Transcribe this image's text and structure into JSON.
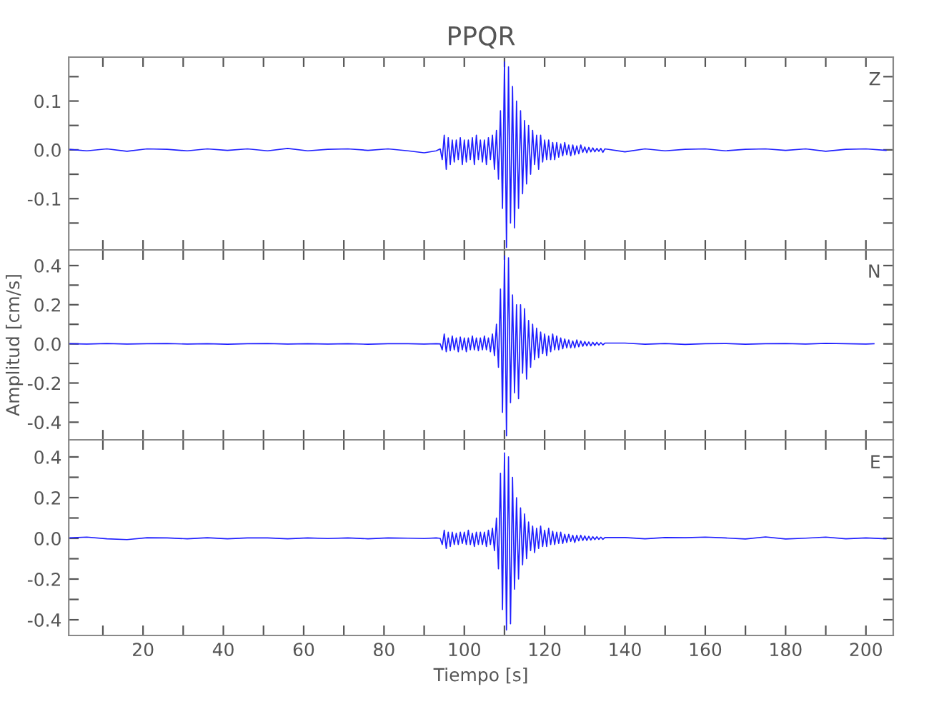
{
  "chart_data": [
    {
      "type": "line",
      "title": "PPQR",
      "annotations": [
        "Z"
      ],
      "tick_labels": "y",
      "grid": false,
      "x": [
        1.5,
        6,
        11,
        16,
        21,
        26,
        31,
        36,
        41,
        46,
        51,
        56,
        61,
        66,
        71,
        76,
        81,
        86,
        90,
        93,
        94,
        94.5,
        95,
        95.5,
        96,
        96.5,
        97,
        97.5,
        98,
        98.5,
        99,
        99.5,
        100,
        100.5,
        101,
        101.5,
        102,
        102.5,
        103,
        103.5,
        104,
        104.5,
        105,
        105.5,
        106,
        106.5,
        107,
        107.5,
        108,
        108.5,
        109,
        109.5,
        110,
        110.5,
        111,
        111.5,
        112,
        112.5,
        113,
        113.5,
        114,
        114.5,
        115,
        115.5,
        116,
        116.5,
        117,
        117.5,
        118,
        118.5,
        119,
        119.5,
        120,
        120.5,
        121,
        121.5,
        122,
        122.5,
        123,
        123.5,
        124,
        124.5,
        125,
        125.5,
        126,
        126.5,
        127,
        127.5,
        128,
        128.5,
        129,
        129.5,
        130,
        130.5,
        131,
        131.5,
        132,
        132.5,
        133,
        133.5,
        134,
        134.5,
        135,
        140,
        145,
        150,
        155,
        160,
        165,
        170,
        175,
        180,
        185,
        190,
        195,
        200,
        205
      ],
      "xlim": [
        1.5,
        206.8
      ],
      "xticks": [
        {
          "value": 10,
          "label": null
        },
        20,
        {
          "value": 30,
          "label": null
        },
        40,
        {
          "value": 50,
          "label": null
        },
        60,
        {
          "value": 70,
          "label": null
        },
        80,
        {
          "value": 90,
          "label": null
        },
        100,
        {
          "value": 110,
          "label": null
        },
        120,
        {
          "value": 130,
          "label": null
        },
        140,
        {
          "value": 150,
          "label": null
        },
        160,
        {
          "value": 170,
          "label": null
        },
        180,
        {
          "value": 190,
          "label": null
        },
        200
      ],
      "ylim": [
        -0.205,
        0.19
      ],
      "yticks": [
        {
          "value": -0.15,
          "label": null
        },
        {
          "value": -0.1,
          "label": "-0.1"
        },
        {
          "value": -0.05,
          "label": null
        },
        {
          "value": 0,
          "label": "0.0"
        },
        {
          "value": 0.05,
          "label": null
        },
        {
          "value": 0.1,
          "label": "0.1"
        },
        {
          "value": 0.15,
          "label": null
        }
      ],
      "series": [
        {
          "color": "#1f1fff",
          "values": [
            0.001,
            -0.002,
            0.002,
            -0.003,
            0.002,
            0.001,
            -0.002,
            0.002,
            -0.001,
            0.002,
            -0.002,
            0.003,
            -0.002,
            0.001,
            0.002,
            -0.001,
            0.002,
            -0.002,
            -0.006,
            -0.002,
            0.002,
            -0.02,
            0.03,
            -0.04,
            0.025,
            -0.03,
            0.02,
            -0.025,
            0.02,
            -0.02,
            0.025,
            -0.03,
            0.02,
            -0.025,
            0.02,
            -0.02,
            0.025,
            -0.03,
            0.03,
            -0.02,
            0.02,
            -0.025,
            0.02,
            -0.03,
            0.025,
            -0.02,
            0.03,
            -0.04,
            0.04,
            -0.06,
            0.08,
            -0.12,
            0.18,
            -0.2,
            0.17,
            -0.15,
            0.13,
            -0.16,
            0.1,
            -0.12,
            0.08,
            -0.09,
            0.06,
            -0.07,
            0.05,
            -0.05,
            0.04,
            -0.03,
            0.03,
            -0.04,
            0.03,
            -0.025,
            0.02,
            -0.02,
            0.02,
            -0.02,
            0.015,
            -0.02,
            0.015,
            -0.015,
            0.012,
            -0.012,
            0.015,
            -0.01,
            0.01,
            -0.012,
            0.01,
            -0.01,
            0.008,
            -0.008,
            0.01,
            -0.005,
            0.006,
            -0.006,
            0.005,
            -0.004,
            0.004,
            -0.004,
            0.003,
            -0.003,
            0.003,
            -0.005,
            0.002,
            -0.004,
            0.002,
            -0.002,
            0.001,
            0.002,
            -0.002,
            0.001,
            0.002,
            -0.001,
            0.002,
            -0.003,
            0.001,
            0.002,
            -0.001
          ]
        }
      ]
    },
    {
      "type": "line",
      "ylabel": "Amplitud [cm/s]",
      "annotations": [
        "N"
      ],
      "tick_labels": "y",
      "grid": false,
      "x": [
        1.5,
        6,
        11,
        16,
        21,
        26,
        31,
        36,
        41,
        46,
        51,
        56,
        61,
        66,
        71,
        76,
        81,
        86,
        90,
        93,
        94,
        94.5,
        95,
        95.5,
        96,
        96.5,
        97,
        97.5,
        98,
        98.5,
        99,
        99.5,
        100,
        100.5,
        101,
        101.5,
        102,
        102.5,
        103,
        103.5,
        104,
        104.5,
        105,
        105.5,
        106,
        106.5,
        107,
        107.5,
        108,
        108.5,
        109,
        109.5,
        110,
        110.5,
        111,
        111.5,
        112,
        112.5,
        113,
        113.5,
        114,
        114.5,
        115,
        115.5,
        116,
        116.5,
        117,
        117.5,
        118,
        118.5,
        119,
        119.5,
        120,
        120.5,
        121,
        121.5,
        122,
        122.5,
        123,
        123.5,
        124,
        124.5,
        125,
        125.5,
        126,
        126.5,
        127,
        127.5,
        128,
        128.5,
        129,
        129.5,
        130,
        130.5,
        131,
        131.5,
        132,
        132.5,
        133,
        133.5,
        134,
        134.5,
        135,
        140,
        145,
        150,
        155,
        160,
        165,
        170,
        175,
        180,
        185,
        190,
        195,
        200,
        202
      ],
      "xlim": [
        1.5,
        206.8
      ],
      "xticks": [
        {
          "value": 10,
          "label": null
        },
        20,
        {
          "value": 30,
          "label": null
        },
        40,
        {
          "value": 50,
          "label": null
        },
        60,
        {
          "value": 70,
          "label": null
        },
        80,
        {
          "value": 90,
          "label": null
        },
        100,
        {
          "value": 110,
          "label": null
        },
        120,
        {
          "value": 130,
          "label": null
        },
        140,
        {
          "value": 150,
          "label": null
        },
        160,
        {
          "value": 170,
          "label": null
        },
        180,
        {
          "value": 190,
          "label": null
        },
        200
      ],
      "ylim": [
        -0.49,
        0.48
      ],
      "yticks": [
        {
          "value": -0.4,
          "label": "-0.4"
        },
        {
          "value": -0.3,
          "label": null
        },
        {
          "value": -0.2,
          "label": "-0.2"
        },
        {
          "value": -0.1,
          "label": null
        },
        {
          "value": 0,
          "label": "0.0"
        },
        {
          "value": 0.1,
          "label": null
        },
        {
          "value": 0.2,
          "label": "0.2"
        },
        {
          "value": 0.3,
          "label": null
        },
        {
          "value": 0.4,
          "label": "0.4"
        }
      ],
      "series": [
        {
          "color": "#1f1fff",
          "values": [
            0.001,
            -0.001,
            0.002,
            -0.001,
            0.001,
            0.002,
            -0.001,
            0.001,
            -0.002,
            0.001,
            0.002,
            -0.001,
            0.001,
            -0.001,
            0.001,
            -0.002,
            0.001,
            0.001,
            -0.001,
            0.001,
            0.0,
            -0.03,
            0.05,
            -0.04,
            0.03,
            -0.035,
            0.04,
            -0.03,
            0.03,
            -0.04,
            0.035,
            -0.03,
            0.03,
            -0.04,
            0.03,
            -0.03,
            0.04,
            -0.03,
            0.03,
            -0.035,
            0.03,
            -0.03,
            0.04,
            -0.03,
            0.03,
            -0.04,
            0.05,
            -0.06,
            0.1,
            -0.12,
            0.28,
            -0.35,
            0.45,
            -0.47,
            0.44,
            -0.3,
            0.25,
            -0.25,
            0.2,
            -0.28,
            0.2,
            -0.15,
            0.18,
            -0.18,
            0.12,
            -0.12,
            0.1,
            -0.08,
            0.08,
            -0.07,
            0.06,
            -0.05,
            0.05,
            -0.06,
            0.04,
            -0.04,
            0.05,
            -0.03,
            0.04,
            -0.03,
            0.03,
            -0.025,
            0.025,
            -0.02,
            0.02,
            -0.02,
            0.015,
            -0.02,
            0.02,
            -0.015,
            0.015,
            -0.012,
            0.012,
            -0.01,
            0.01,
            -0.01,
            0.008,
            -0.008,
            0.008,
            -0.006,
            0.006,
            -0.005,
            0.004,
            0.004,
            -0.002,
            0.002,
            -0.003,
            0.001,
            0.002,
            -0.002,
            0.001,
            0.002,
            -0.001,
            0.003,
            0.001,
            -0.001,
            0.001
          ]
        }
      ]
    },
    {
      "type": "line",
      "xlabel": "Tiempo [s]",
      "annotations": [
        "E"
      ],
      "grid": false,
      "x": [
        1.5,
        6,
        11,
        16,
        21,
        26,
        31,
        36,
        41,
        46,
        51,
        56,
        61,
        66,
        71,
        76,
        81,
        86,
        90,
        93,
        94,
        94.5,
        95,
        95.5,
        96,
        96.5,
        97,
        97.5,
        98,
        98.5,
        99,
        99.5,
        100,
        100.5,
        101,
        101.5,
        102,
        102.5,
        103,
        103.5,
        104,
        104.5,
        105,
        105.5,
        106,
        106.5,
        107,
        107.5,
        108,
        108.5,
        109,
        109.5,
        110,
        110.5,
        111,
        111.5,
        112,
        112.5,
        113,
        113.5,
        114,
        114.5,
        115,
        115.5,
        116,
        116.5,
        117,
        117.5,
        118,
        118.5,
        119,
        119.5,
        120,
        120.5,
        121,
        121.5,
        122,
        122.5,
        123,
        123.5,
        124,
        124.5,
        125,
        125.5,
        126,
        126.5,
        127,
        127.5,
        128,
        128.5,
        129,
        129.5,
        130,
        130.5,
        131,
        131.5,
        132,
        132.5,
        133,
        133.5,
        134,
        134.5,
        135,
        140,
        145,
        150,
        155,
        160,
        165,
        170,
        175,
        180,
        185,
        190,
        195,
        200,
        205
      ],
      "xlim": [
        1.5,
        206.8
      ],
      "xticks": [
        {
          "value": 10,
          "label": null
        },
        20,
        {
          "value": 30,
          "label": null
        },
        40,
        {
          "value": 50,
          "label": null
        },
        60,
        {
          "value": 70,
          "label": null
        },
        80,
        {
          "value": 90,
          "label": null
        },
        100,
        {
          "value": 110,
          "label": null
        },
        120,
        {
          "value": 130,
          "label": null
        },
        140,
        {
          "value": 150,
          "label": null
        },
        160,
        {
          "value": 170,
          "label": null
        },
        180,
        {
          "value": 190,
          "label": null
        },
        200
      ],
      "ylim": [
        -0.477,
        0.484
      ],
      "yticks": [
        {
          "value": -0.4,
          "label": "-0.4"
        },
        {
          "value": -0.3,
          "label": null
        },
        {
          "value": -0.2,
          "label": "-0.2"
        },
        {
          "value": -0.1,
          "label": null
        },
        {
          "value": 0,
          "label": "0.0"
        },
        {
          "value": 0.1,
          "label": null
        },
        {
          "value": 0.2,
          "label": "0.2"
        },
        {
          "value": 0.3,
          "label": null
        },
        {
          "value": 0.4,
          "label": "0.4"
        }
      ],
      "series": [
        {
          "color": "#1f1fff",
          "values": [
            0.002,
            0.006,
            -0.002,
            -0.006,
            0.003,
            0.002,
            -0.002,
            0.003,
            -0.002,
            0.002,
            0.002,
            -0.002,
            0.002,
            -0.001,
            0.002,
            -0.002,
            0.002,
            0.001,
            -0.001,
            0.002,
            0.0,
            -0.03,
            0.04,
            -0.05,
            0.03,
            -0.04,
            0.03,
            -0.03,
            0.025,
            -0.03,
            0.03,
            -0.025,
            0.03,
            -0.03,
            0.04,
            -0.03,
            0.025,
            -0.04,
            0.03,
            -0.03,
            0.03,
            -0.03,
            0.03,
            -0.04,
            0.04,
            -0.03,
            0.05,
            -0.06,
            0.1,
            -0.15,
            0.32,
            -0.35,
            0.42,
            -0.45,
            0.4,
            -0.42,
            0.3,
            -0.25,
            0.2,
            -0.2,
            0.15,
            -0.13,
            0.12,
            -0.1,
            0.08,
            -0.06,
            0.06,
            -0.07,
            0.05,
            -0.05,
            0.06,
            -0.04,
            0.04,
            -0.04,
            0.05,
            -0.03,
            0.035,
            -0.03,
            0.03,
            -0.025,
            0.03,
            -0.025,
            0.02,
            -0.02,
            0.02,
            -0.015,
            0.015,
            -0.02,
            0.015,
            -0.012,
            0.015,
            -0.01,
            0.012,
            -0.01,
            0.01,
            -0.008,
            0.008,
            -0.006,
            0.008,
            -0.005,
            0.006,
            -0.005,
            0.004,
            0.004,
            -0.002,
            0.004,
            0.003,
            0.006,
            0.002,
            -0.003,
            0.007,
            -0.003,
            0.001,
            0.006,
            -0.002,
            0.002,
            -0.002
          ]
        }
      ]
    }
  ]
}
